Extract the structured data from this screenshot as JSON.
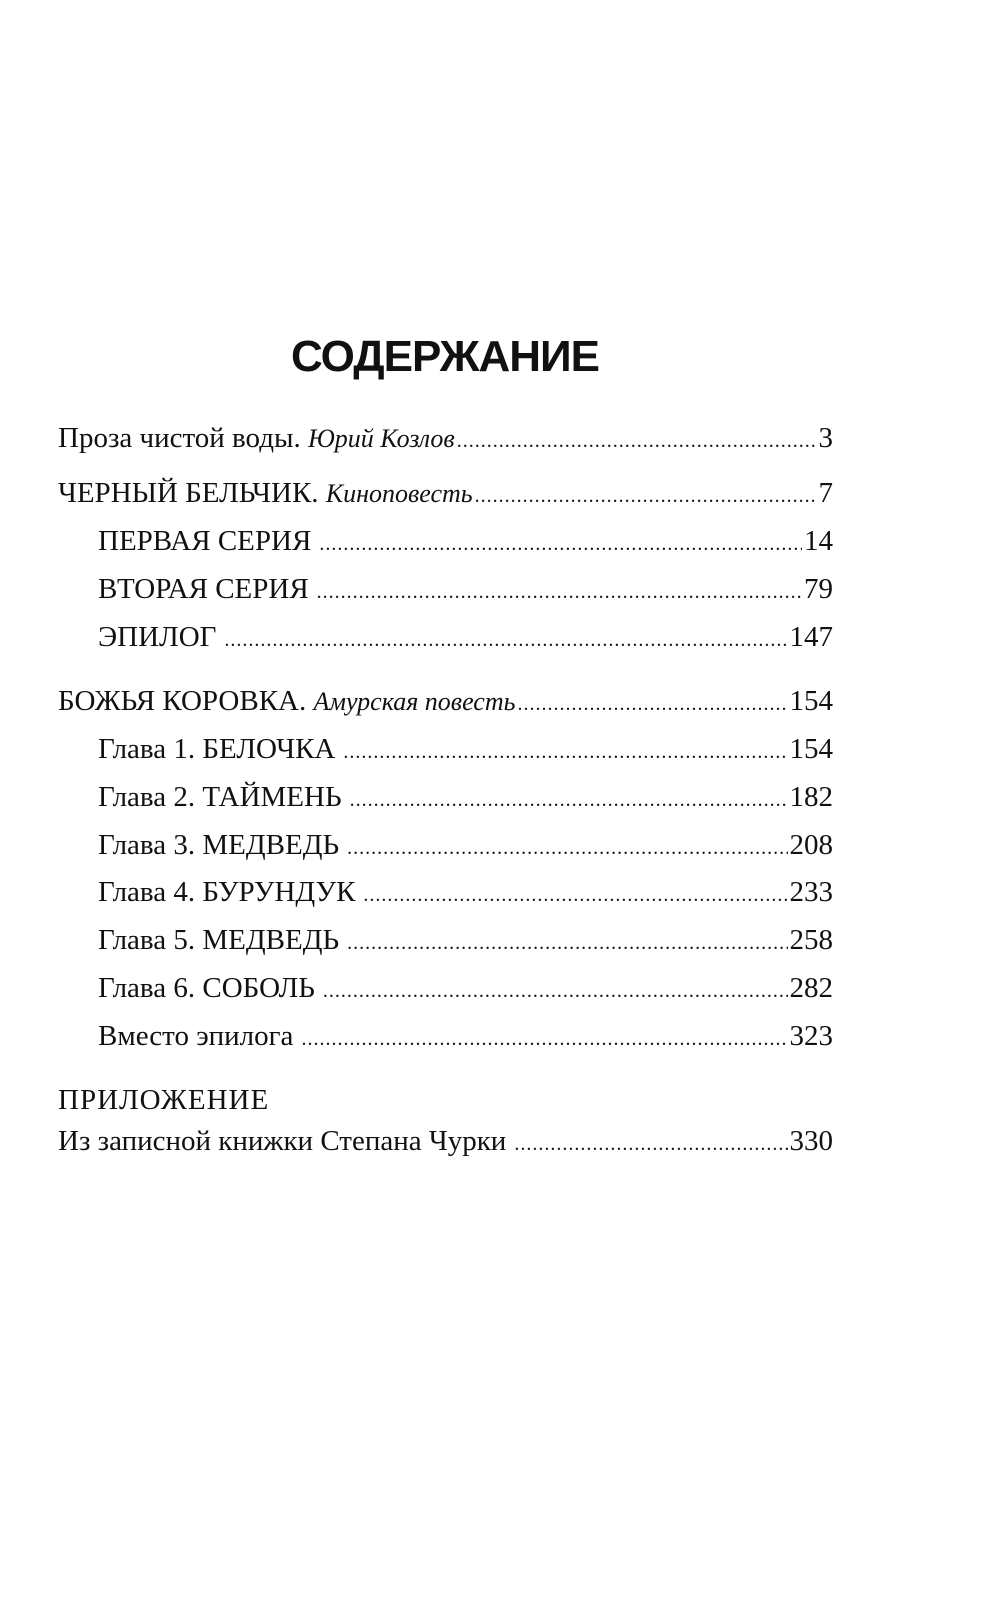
{
  "title": "СОДЕРЖАНИЕ",
  "entries": [
    {
      "text": "Проза чистой воды.",
      "italic": "Юрий Козлов",
      "page": "3"
    },
    {
      "text": "ЧЕРНЫЙ БЕЛЬЧИК.",
      "italic": "Киноповесть",
      "page": "7"
    },
    {
      "text": "ПЕРВАЯ СЕРИЯ",
      "page": "14"
    },
    {
      "text": "ВТОРАЯ СЕРИЯ",
      "page": "79"
    },
    {
      "text": "ЭПИЛОГ",
      "page": "147"
    },
    {
      "text": "БОЖЬЯ  КОРОВКА.",
      "italic": "Амурская повесть",
      "page": "154"
    },
    {
      "text": "Глава 1. БЕЛОЧКА",
      "page": "154"
    },
    {
      "text": "Глава 2. ТАЙМЕНЬ",
      "page": "182"
    },
    {
      "text": "Глава 3. МЕДВЕДЬ",
      "page": "208"
    },
    {
      "text": "Глава 4. БУРУНДУК",
      "page": "233"
    },
    {
      "text": "Глава 5. МЕДВЕДЬ",
      "page": "258"
    },
    {
      "text": "Глава 6. СОБОЛЬ",
      "page": "282"
    },
    {
      "text": "Вместо эпилога",
      "page": "323"
    }
  ],
  "appendix": {
    "heading": "ПРИЛОЖЕНИЕ",
    "entry": {
      "text": "Из записной книжки Степана Чурки",
      "page": "330"
    }
  }
}
